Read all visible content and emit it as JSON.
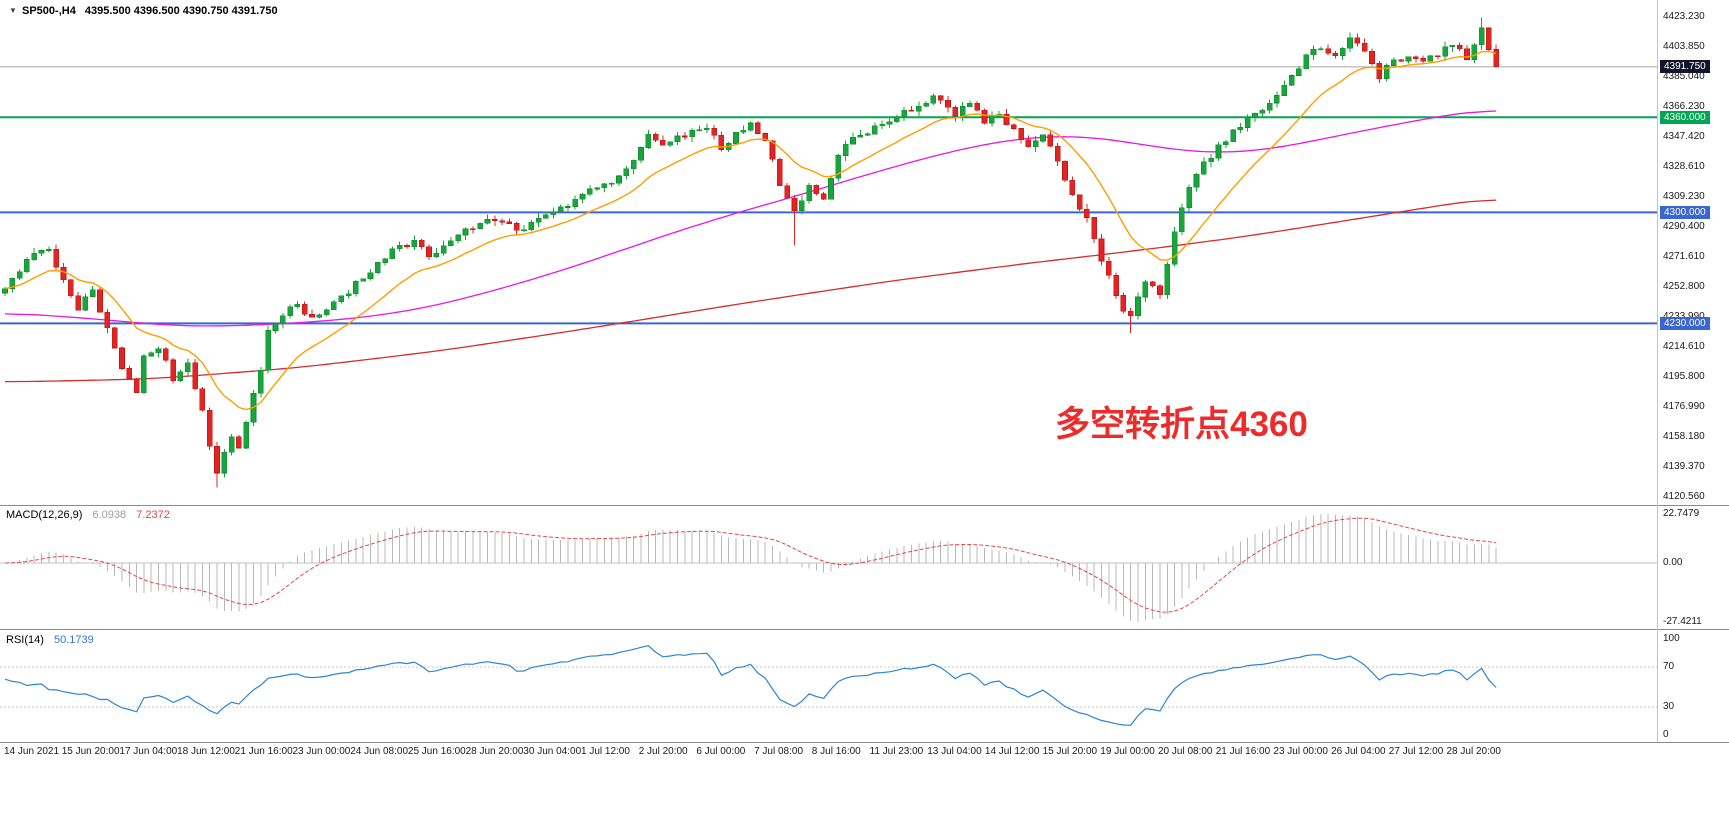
{
  "header": {
    "symbol": "SP500-,H4",
    "ohlc": "4395.500 4396.500 4390.750 4391.750"
  },
  "annotation": {
    "text": "多空转折点4360",
    "color": "#ee2b2b"
  },
  "colors": {
    "candle_up": "#18a53b",
    "candle_up_stroke": "#0e8f2f",
    "candle_down": "#e02525",
    "candle_down_stroke": "#c41414",
    "ma_fast": "#ff9e00",
    "ma_mid": "#e619e6",
    "ma_slow": "#d92b2b",
    "macd_hist": "#b8b8b8",
    "macd_signal": "#dd4b4b",
    "rsi_line": "#2e86d0",
    "level_green": "#00a651",
    "level_blue": "#3a66d1",
    "price_line": "#a8a8a8",
    "price_badge_bg": "#14142b"
  },
  "chart_data": {
    "type": "candlestick",
    "symbol": "SP500-",
    "timeframe": "H4",
    "quote": {
      "open": 4395.5,
      "high": 4396.5,
      "low": 4390.75,
      "close": 4391.75
    },
    "main": {
      "y_ticks": [
        "4423.230",
        "4403.850",
        "4385.040",
        "4366.230",
        "4347.420",
        "4328.610",
        "4309.230",
        "4290.400",
        "4271.610",
        "4252.800",
        "4233.990",
        "4214.610",
        "4195.800",
        "4176.990",
        "4158.180",
        "4139.370",
        "4120.560"
      ],
      "y_range": [
        4120.56,
        4423.23
      ],
      "candle_count": 205,
      "price_path": [
        [
          0,
          4252
        ],
        [
          2,
          4262
        ],
        [
          4,
          4274
        ],
        [
          6,
          4277
        ],
        [
          8,
          4258
        ],
        [
          10,
          4240
        ],
        [
          12,
          4251
        ],
        [
          14,
          4226
        ],
        [
          16,
          4201
        ],
        [
          18,
          4188
        ],
        [
          19,
          4208
        ],
        [
          21,
          4214
        ],
        [
          23,
          4196
        ],
        [
          25,
          4206
        ],
        [
          27,
          4176
        ],
        [
          28,
          4152
        ],
        [
          29,
          4134
        ],
        [
          30,
          4148
        ],
        [
          31,
          4158
        ],
        [
          32,
          4150
        ],
        [
          33,
          4168
        ],
        [
          35,
          4200
        ],
        [
          36,
          4226
        ],
        [
          38,
          4236
        ],
        [
          40,
          4242
        ],
        [
          42,
          4232
        ],
        [
          44,
          4237
        ],
        [
          46,
          4246
        ],
        [
          48,
          4256
        ],
        [
          50,
          4264
        ],
        [
          52,
          4272
        ],
        [
          54,
          4279
        ],
        [
          56,
          4282
        ],
        [
          58,
          4272
        ],
        [
          60,
          4277
        ],
        [
          62,
          4284
        ],
        [
          64,
          4291
        ],
        [
          66,
          4296
        ],
        [
          68,
          4295
        ],
        [
          70,
          4288
        ],
        [
          72,
          4293
        ],
        [
          74,
          4299
        ],
        [
          76,
          4302
        ],
        [
          78,
          4306
        ],
        [
          80,
          4313
        ],
        [
          82,
          4318
        ],
        [
          84,
          4322
        ],
        [
          86,
          4335
        ],
        [
          88,
          4349
        ],
        [
          90,
          4344
        ],
        [
          92,
          4347
        ],
        [
          94,
          4351
        ],
        [
          96,
          4353
        ],
        [
          98,
          4341
        ],
        [
          100,
          4349
        ],
        [
          102,
          4356
        ],
        [
          104,
          4345
        ],
        [
          106,
          4319
        ],
        [
          108,
          4300
        ],
        [
          110,
          4316
        ],
        [
          112,
          4306
        ],
        [
          114,
          4336
        ],
        [
          116,
          4346
        ],
        [
          118,
          4351
        ],
        [
          120,
          4357
        ],
        [
          122,
          4361
        ],
        [
          124,
          4366
        ],
        [
          126,
          4371
        ],
        [
          128,
          4373
        ],
        [
          130,
          4361
        ],
        [
          132,
          4369
        ],
        [
          134,
          4356
        ],
        [
          136,
          4363
        ],
        [
          138,
          4351
        ],
        [
          140,
          4341
        ],
        [
          142,
          4349
        ],
        [
          144,
          4331
        ],
        [
          146,
          4311
        ],
        [
          148,
          4296
        ],
        [
          150,
          4271
        ],
        [
          152,
          4246
        ],
        [
          154,
          4233
        ],
        [
          156,
          4257
        ],
        [
          158,
          4247
        ],
        [
          160,
          4289
        ],
        [
          162,
          4316
        ],
        [
          164,
          4331
        ],
        [
          166,
          4341
        ],
        [
          168,
          4352
        ],
        [
          170,
          4358
        ],
        [
          172,
          4364
        ],
        [
          174,
          4372
        ],
        [
          176,
          4386
        ],
        [
          178,
          4399
        ],
        [
          180,
          4405
        ],
        [
          182,
          4397
        ],
        [
          184,
          4409
        ],
        [
          186,
          4402
        ],
        [
          188,
          4386
        ],
        [
          190,
          4395
        ],
        [
          192,
          4398
        ],
        [
          194,
          4394
        ],
        [
          196,
          4400
        ],
        [
          198,
          4406
        ],
        [
          200,
          4398
        ],
        [
          202,
          4417
        ],
        [
          204,
          4391.75
        ]
      ],
      "wick_overrides": {
        "29": {
          "low": 4126.5
        },
        "108": {
          "low": 4279
        },
        "154": {
          "low": 4224
        },
        "202": {
          "high": 4423
        }
      },
      "ma_fast_period": 14,
      "ma_mid_anchors": [
        [
          0,
          4237
        ],
        [
          12,
          4233
        ],
        [
          24,
          4228
        ],
        [
          36,
          4229
        ],
        [
          48,
          4233
        ],
        [
          58,
          4240
        ],
        [
          68,
          4252
        ],
        [
          78,
          4266
        ],
        [
          88,
          4282
        ],
        [
          98,
          4297
        ],
        [
          108,
          4310
        ],
        [
          118,
          4324
        ],
        [
          128,
          4337
        ],
        [
          136,
          4345
        ],
        [
          144,
          4349
        ],
        [
          152,
          4346
        ],
        [
          160,
          4339
        ],
        [
          168,
          4337
        ],
        [
          176,
          4342
        ],
        [
          184,
          4350
        ],
        [
          192,
          4357
        ],
        [
          198,
          4362
        ],
        [
          204,
          4366
        ]
      ],
      "ma_slow_anchors": [
        [
          0,
          4193
        ],
        [
          20,
          4195
        ],
        [
          40,
          4202
        ],
        [
          60,
          4213
        ],
        [
          80,
          4227
        ],
        [
          100,
          4242
        ],
        [
          120,
          4256
        ],
        [
          140,
          4268
        ],
        [
          155,
          4276
        ],
        [
          170,
          4285
        ],
        [
          185,
          4296
        ],
        [
          204,
          4310
        ]
      ],
      "levels": [
        {
          "price": 4391.75,
          "label": "4391.750",
          "kind": "current-price"
        },
        {
          "price": 4360.0,
          "label": "4360.000",
          "kind": "green"
        },
        {
          "price": 4300.0,
          "label": "4300.000",
          "kind": "blue"
        },
        {
          "price": 4230.0,
          "label": "4230.000",
          "kind": "blue"
        }
      ]
    },
    "macd": {
      "label": "MACD(12,26,9)",
      "values": [
        "6.0938",
        "7.2372"
      ],
      "params": [
        12,
        26,
        9
      ],
      "ticks": [
        "22.7479",
        "0.00",
        "-27.4211"
      ],
      "range": [
        -27.4211,
        22.7479
      ]
    },
    "rsi": {
      "label": "RSI(14)",
      "value": "50.1739",
      "period": 14,
      "ticks": [
        "100",
        "70",
        "30",
        "0"
      ],
      "guide_levels": [
        70,
        30
      ]
    },
    "x_labels": [
      "14 Jun 2021",
      "15 Jun 20:00",
      "17 Jun 04:00",
      "18 Jun 12:00",
      "21 Jun 16:00",
      "23 Jun 00:00",
      "24 Jun 08:00",
      "25 Jun 16:00",
      "28 Jun 20:00",
      "30 Jun 04:00",
      "1 Jul 12:00",
      "2 Jul 20:00",
      "6 Jul 00:00",
      "7 Jul 08:00",
      "8 Jul 16:00",
      "11 Jul 23:00",
      "13 Jul 04:00",
      "14 Jul 12:00",
      "15 Jul 20:00",
      "19 Jul 00:00",
      "20 Jul 08:00",
      "21 Jul 16:00",
      "23 Jul 00:00",
      "26 Jul 04:00",
      "27 Jul 12:00",
      "28 Jul 20:00"
    ]
  }
}
